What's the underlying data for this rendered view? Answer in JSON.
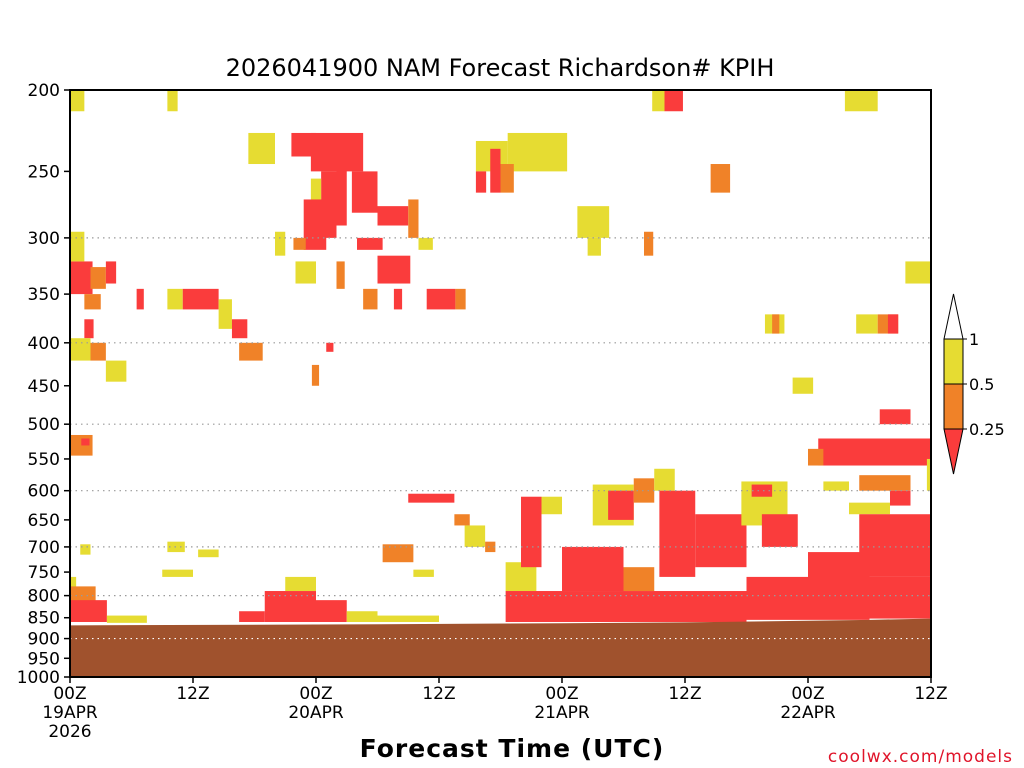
{
  "chart_data": {
    "type": "heatmap",
    "title": "2026041900 NAM Forecast Richardson# KPIH",
    "xlabel": "Forecast Time (UTC)",
    "ylabel": "",
    "x_unit": "forecast hour",
    "xlim": [
      0,
      84
    ],
    "y_unit": "hPa",
    "ylim": [
      1000,
      200
    ],
    "y_scale": "log",
    "y_ticks": [
      200,
      250,
      300,
      350,
      400,
      450,
      500,
      550,
      600,
      650,
      700,
      750,
      800,
      850,
      900,
      950,
      1000
    ],
    "y_gridlines": [
      300,
      400,
      500,
      600,
      700,
      800,
      900,
      1000
    ],
    "x_ticks": [
      {
        "hour": 0,
        "lines": [
          "00Z",
          "19APR",
          "2026"
        ]
      },
      {
        "hour": 12,
        "lines": [
          "12Z"
        ]
      },
      {
        "hour": 24,
        "lines": [
          "00Z",
          "20APR"
        ]
      },
      {
        "hour": 36,
        "lines": [
          "12Z"
        ]
      },
      {
        "hour": 48,
        "lines": [
          "00Z",
          "21APR"
        ]
      },
      {
        "hour": 60,
        "lines": [
          "12Z"
        ]
      },
      {
        "hour": 72,
        "lines": [
          "00Z",
          "22APR"
        ]
      },
      {
        "hour": 84,
        "lines": [
          "12Z"
        ]
      }
    ],
    "terrain": {
      "label": "surface pressure (terrain)",
      "color": "#a0522d",
      "points": [
        [
          0,
          868
        ],
        [
          24,
          866
        ],
        [
          48,
          863
        ],
        [
          60,
          861
        ],
        [
          72,
          857
        ],
        [
          78,
          855
        ],
        [
          84,
          852
        ]
      ]
    },
    "colorbar": {
      "labels": [
        "1",
        "0.5",
        "0.25"
      ],
      "bins": [
        {
          "range": "> 1",
          "color": "#ffffff"
        },
        {
          "range": "0.5 - 1",
          "color": "#e6dc32"
        },
        {
          "range": "0.25 - 0.5",
          "color": "#f08228"
        },
        {
          "range": "< 0.25",
          "color": "#fa3c3c"
        }
      ]
    },
    "regions": [
      {
        "hours": [
          0,
          1.4
        ],
        "p": [
          200,
          212
        ],
        "bin": "0.5 - 1"
      },
      {
        "hours": [
          9.5,
          10.5
        ],
        "p": [
          200,
          212
        ],
        "bin": "0.5 - 1"
      },
      {
        "hours": [
          56.8,
          58
        ],
        "p": [
          200,
          212
        ],
        "bin": "0.5 - 1"
      },
      {
        "hours": [
          58,
          59.8
        ],
        "p": [
          200,
          212
        ],
        "bin": "< 0.25"
      },
      {
        "hours": [
          75.6,
          78.8
        ],
        "p": [
          200,
          212
        ],
        "bin": "0.5 - 1"
      },
      {
        "hours": [
          17.4,
          20
        ],
        "p": [
          225,
          245
        ],
        "bin": "0.5 - 1"
      },
      {
        "hours": [
          21.6,
          24
        ],
        "p": [
          225,
          240
        ],
        "bin": "< 0.25"
      },
      {
        "hours": [
          23.5,
          28.6
        ],
        "p": [
          225,
          250
        ],
        "bin": "< 0.25"
      },
      {
        "hours": [
          24.5,
          26
        ],
        "p": [
          250,
          300
        ],
        "bin": "< 0.25"
      },
      {
        "hours": [
          26,
          27
        ],
        "p": [
          245,
          290
        ],
        "bin": "< 0.25"
      },
      {
        "hours": [
          23.5,
          24.5
        ],
        "p": [
          255,
          300
        ],
        "bin": "0.5 - 1"
      },
      {
        "hours": [
          22.8,
          25
        ],
        "p": [
          270,
          310
        ],
        "bin": "< 0.25"
      },
      {
        "hours": [
          27.5,
          30
        ],
        "p": [
          250,
          280
        ],
        "bin": "< 0.25"
      },
      {
        "hours": [
          28,
          30.5
        ],
        "p": [
          300,
          310
        ],
        "bin": "< 0.25"
      },
      {
        "hours": [
          21.8,
          23
        ],
        "p": [
          300,
          310
        ],
        "bin": "0.25 - 0.5"
      },
      {
        "hours": [
          20,
          21
        ],
        "p": [
          295,
          315
        ],
        "bin": "0.5 - 1"
      },
      {
        "hours": [
          22,
          24
        ],
        "p": [
          320,
          340
        ],
        "bin": "0.5 - 1"
      },
      {
        "hours": [
          26,
          26.8
        ],
        "p": [
          320,
          345
        ],
        "bin": "0.25 - 0.5"
      },
      {
        "hours": [
          30,
          33
        ],
        "p": [
          275,
          290
        ],
        "bin": "< 0.25"
      },
      {
        "hours": [
          33,
          34
        ],
        "p": [
          270,
          300
        ],
        "bin": "0.25 - 0.5"
      },
      {
        "hours": [
          30,
          33.2
        ],
        "p": [
          315,
          340
        ],
        "bin": "< 0.25"
      },
      {
        "hours": [
          34,
          35.4
        ],
        "p": [
          300,
          310
        ],
        "bin": "0.5 - 1"
      },
      {
        "hours": [
          39.6,
          42.7
        ],
        "p": [
          230,
          250
        ],
        "bin": "0.5 - 1"
      },
      {
        "hours": [
          42.7,
          48.5
        ],
        "p": [
          225,
          250
        ],
        "bin": "0.5 - 1"
      },
      {
        "hours": [
          39.6,
          40.6
        ],
        "p": [
          250,
          265
        ],
        "bin": "< 0.25"
      },
      {
        "hours": [
          41,
          42
        ],
        "p": [
          235,
          265
        ],
        "bin": "< 0.25"
      },
      {
        "hours": [
          42,
          43.3
        ],
        "p": [
          245,
          265
        ],
        "bin": "0.25 - 0.5"
      },
      {
        "hours": [
          49.5,
          52.6
        ],
        "p": [
          275,
          300
        ],
        "bin": "0.5 - 1"
      },
      {
        "hours": [
          50.5,
          51.8
        ],
        "p": [
          300,
          315
        ],
        "bin": "0.5 - 1"
      },
      {
        "hours": [
          62.5,
          64.4
        ],
        "p": [
          245,
          265
        ],
        "bin": "0.25 - 0.5"
      },
      {
        "hours": [
          56,
          56.9
        ],
        "p": [
          295,
          315
        ],
        "bin": "0.25 - 0.5"
      },
      {
        "hours": [
          0,
          2.2
        ],
        "p": [
          320,
          350
        ],
        "bin": "< 0.25"
      },
      {
        "hours": [
          0,
          1.4
        ],
        "p": [
          295,
          320
        ],
        "bin": "0.5 - 1"
      },
      {
        "hours": [
          1.4,
          3
        ],
        "p": [
          350,
          365
        ],
        "bin": "0.25 - 0.5"
      },
      {
        "hours": [
          2,
          3.5
        ],
        "p": [
          325,
          345
        ],
        "bin": "0.25 - 0.5"
      },
      {
        "hours": [
          3.5,
          4.5
        ],
        "p": [
          320,
          340
        ],
        "bin": "< 0.25"
      },
      {
        "hours": [
          1.4,
          2.3
        ],
        "p": [
          375,
          395
        ],
        "bin": "< 0.25"
      },
      {
        "hours": [
          0,
          2
        ],
        "p": [
          395,
          420
        ],
        "bin": "0.5 - 1"
      },
      {
        "hours": [
          2,
          3.5
        ],
        "p": [
          400,
          420
        ],
        "bin": "0.25 - 0.5"
      },
      {
        "hours": [
          3.5,
          5.5
        ],
        "p": [
          420,
          445
        ],
        "bin": "0.5 - 1"
      },
      {
        "hours": [
          0,
          2.2
        ],
        "p": [
          515,
          545
        ],
        "bin": "0.25 - 0.5"
      },
      {
        "hours": [
          1.1,
          1.9
        ],
        "p": [
          520,
          530
        ],
        "bin": "< 0.25"
      },
      {
        "hours": [
          6.5,
          7.2
        ],
        "p": [
          345,
          365
        ],
        "bin": "< 0.25"
      },
      {
        "hours": [
          9.5,
          11
        ],
        "p": [
          345,
          365
        ],
        "bin": "0.5 - 1"
      },
      {
        "hours": [
          11,
          14.5
        ],
        "p": [
          345,
          365
        ],
        "bin": "< 0.25"
      },
      {
        "hours": [
          14.5,
          15.8
        ],
        "p": [
          355,
          385
        ],
        "bin": "0.5 - 1"
      },
      {
        "hours": [
          15.8,
          17.3
        ],
        "p": [
          375,
          395
        ],
        "bin": "< 0.25"
      },
      {
        "hours": [
          16.5,
          18.8
        ],
        "p": [
          400,
          420
        ],
        "bin": "0.25 - 0.5"
      },
      {
        "hours": [
          25,
          25.7
        ],
        "p": [
          400,
          410
        ],
        "bin": "< 0.25"
      },
      {
        "hours": [
          23.6,
          24.3
        ],
        "p": [
          425,
          450
        ],
        "bin": "0.25 - 0.5"
      },
      {
        "hours": [
          28.6,
          30
        ],
        "p": [
          345,
          365
        ],
        "bin": "0.25 - 0.5"
      },
      {
        "hours": [
          31.6,
          32.4
        ],
        "p": [
          345,
          365
        ],
        "bin": "< 0.25"
      },
      {
        "hours": [
          34.8,
          37.6
        ],
        "p": [
          345,
          365
        ],
        "bin": "< 0.25"
      },
      {
        "hours": [
          37.6,
          38.6
        ],
        "p": [
          345,
          365
        ],
        "bin": "0.25 - 0.5"
      },
      {
        "hours": [
          67.8,
          69.7
        ],
        "p": [
          370,
          390
        ],
        "bin": "0.5 - 1"
      },
      {
        "hours": [
          68.5,
          69.2
        ],
        "p": [
          370,
          390
        ],
        "bin": "0.25 - 0.5"
      },
      {
        "hours": [
          70.5,
          72.5
        ],
        "p": [
          440,
          460
        ],
        "bin": "0.5 - 1"
      },
      {
        "hours": [
          76.7,
          78.8
        ],
        "p": [
          370,
          390
        ],
        "bin": "0.5 - 1"
      },
      {
        "hours": [
          78.8,
          80.8
        ],
        "p": [
          370,
          390
        ],
        "bin": "0.25 - 0.5"
      },
      {
        "hours": [
          79.8,
          80.8
        ],
        "p": [
          370,
          390
        ],
        "bin": "< 0.25"
      },
      {
        "hours": [
          81.5,
          84
        ],
        "p": [
          320,
          340
        ],
        "bin": "0.5 - 1"
      },
      {
        "hours": [
          79,
          82
        ],
        "p": [
          480,
          500
        ],
        "bin": "< 0.25"
      },
      {
        "hours": [
          73,
          84
        ],
        "p": [
          520,
          560
        ],
        "bin": "< 0.25"
      },
      {
        "hours": [
          72,
          73.5
        ],
        "p": [
          535,
          560
        ],
        "bin": "0.25 - 0.5"
      },
      {
        "hours": [
          77,
          82
        ],
        "p": [
          575,
          600
        ],
        "bin": "0.25 - 0.5"
      },
      {
        "hours": [
          73.5,
          76
        ],
        "p": [
          585,
          600
        ],
        "bin": "0.5 - 1"
      },
      {
        "hours": [
          1,
          2
        ],
        "p": [
          695,
          715
        ],
        "bin": "0.5 - 1"
      },
      {
        "hours": [
          9.5,
          11.2
        ],
        "p": [
          690,
          710
        ],
        "bin": "0.5 - 1"
      },
      {
        "hours": [
          9,
          12
        ],
        "p": [
          745,
          760
        ],
        "bin": "0.5 - 1"
      },
      {
        "hours": [
          12.5,
          14.5
        ],
        "p": [
          705,
          720
        ],
        "bin": "0.5 - 1"
      },
      {
        "hours": [
          0,
          0.6
        ],
        "p": [
          760,
          800
        ],
        "bin": "0.5 - 1"
      },
      {
        "hours": [
          0,
          2.5
        ],
        "p": [
          780,
          815
        ],
        "bin": "0.25 - 0.5"
      },
      {
        "hours": [
          0,
          3.6
        ],
        "p": [
          810,
          860
        ],
        "bin": "< 0.25"
      },
      {
        "hours": [
          3.6,
          7.5
        ],
        "p": [
          845,
          862
        ],
        "bin": "0.5 - 1"
      },
      {
        "hours": [
          16.5,
          19
        ],
        "p": [
          835,
          860
        ],
        "bin": "< 0.25"
      },
      {
        "hours": [
          19,
          24
        ],
        "p": [
          790,
          860
        ],
        "bin": "< 0.25"
      },
      {
        "hours": [
          21,
          24
        ],
        "p": [
          760,
          790
        ],
        "bin": "0.5 - 1"
      },
      {
        "hours": [
          24,
          27
        ],
        "p": [
          810,
          860
        ],
        "bin": "< 0.25"
      },
      {
        "hours": [
          27,
          30
        ],
        "p": [
          835,
          860
        ],
        "bin": "0.5 - 1"
      },
      {
        "hours": [
          30,
          36
        ],
        "p": [
          845,
          860
        ],
        "bin": "0.5 - 1"
      },
      {
        "hours": [
          30.5,
          33.5
        ],
        "p": [
          695,
          730
        ],
        "bin": "0.25 - 0.5"
      },
      {
        "hours": [
          33.5,
          35.5
        ],
        "p": [
          745,
          760
        ],
        "bin": "0.5 - 1"
      },
      {
        "hours": [
          33,
          37.5
        ],
        "p": [
          605,
          620
        ],
        "bin": "< 0.25"
      },
      {
        "hours": [
          37.5,
          39
        ],
        "p": [
          640,
          660
        ],
        "bin": "0.25 - 0.5"
      },
      {
        "hours": [
          38.5,
          40.5
        ],
        "p": [
          660,
          700
        ],
        "bin": "0.5 - 1"
      },
      {
        "hours": [
          40.5,
          41.5
        ],
        "p": [
          690,
          710
        ],
        "bin": "0.25 - 0.5"
      },
      {
        "hours": [
          42.5,
          45.5
        ],
        "p": [
          730,
          790
        ],
        "bin": "0.5 - 1"
      },
      {
        "hours": [
          42.5,
          48
        ],
        "p": [
          790,
          860
        ],
        "bin": "< 0.25"
      },
      {
        "hours": [
          44,
          46
        ],
        "p": [
          610,
          740
        ],
        "bin": "< 0.25"
      },
      {
        "hours": [
          46,
          48
        ],
        "p": [
          610,
          640
        ],
        "bin": "0.5 - 1"
      },
      {
        "hours": [
          48,
          60
        ],
        "p": [
          790,
          860
        ],
        "bin": "< 0.25"
      },
      {
        "hours": [
          48,
          54
        ],
        "p": [
          700,
          790
        ],
        "bin": "< 0.25"
      },
      {
        "hours": [
          54,
          57
        ],
        "p": [
          740,
          790
        ],
        "bin": "0.25 - 0.5"
      },
      {
        "hours": [
          51,
          55
        ],
        "p": [
          590,
          660
        ],
        "bin": "0.5 - 1"
      },
      {
        "hours": [
          52.5,
          55
        ],
        "p": [
          600,
          650
        ],
        "bin": "< 0.25"
      },
      {
        "hours": [
          55,
          57
        ],
        "p": [
          580,
          620
        ],
        "bin": "0.25 - 0.5"
      },
      {
        "hours": [
          57,
          59
        ],
        "p": [
          565,
          600
        ],
        "bin": "0.5 - 1"
      },
      {
        "hours": [
          57.5,
          61
        ],
        "p": [
          600,
          760
        ],
        "bin": "< 0.25"
      },
      {
        "hours": [
          61,
          66
        ],
        "p": [
          640,
          740
        ],
        "bin": "< 0.25"
      },
      {
        "hours": [
          60,
          66
        ],
        "p": [
          790,
          860
        ],
        "bin": "< 0.25"
      },
      {
        "hours": [
          66,
          72
        ],
        "p": [
          760,
          855
        ],
        "bin": "< 0.25"
      },
      {
        "hours": [
          65.5,
          70
        ],
        "p": [
          585,
          660
        ],
        "bin": "0.5 - 1"
      },
      {
        "hours": [
          66.5,
          68.5
        ],
        "p": [
          590,
          610
        ],
        "bin": "< 0.25"
      },
      {
        "hours": [
          67.5,
          71
        ],
        "p": [
          640,
          700
        ],
        "bin": "< 0.25"
      },
      {
        "hours": [
          72,
          78
        ],
        "p": [
          710,
          855
        ],
        "bin": "< 0.25"
      },
      {
        "hours": [
          76,
          80
        ],
        "p": [
          620,
          640
        ],
        "bin": "0.5 - 1"
      },
      {
        "hours": [
          77,
          84
        ],
        "p": [
          640,
          760
        ],
        "bin": "< 0.25"
      },
      {
        "hours": [
          78,
          84
        ],
        "p": [
          760,
          852
        ],
        "bin": "< 0.25"
      },
      {
        "hours": [
          80,
          82
        ],
        "p": [
          600,
          625
        ],
        "bin": "< 0.25"
      },
      {
        "hours": [
          83.6,
          84
        ],
        "p": [
          550,
          600
        ],
        "bin": "0.5 - 1"
      }
    ]
  },
  "footer": {
    "credit": "coolwx.com/models"
  }
}
